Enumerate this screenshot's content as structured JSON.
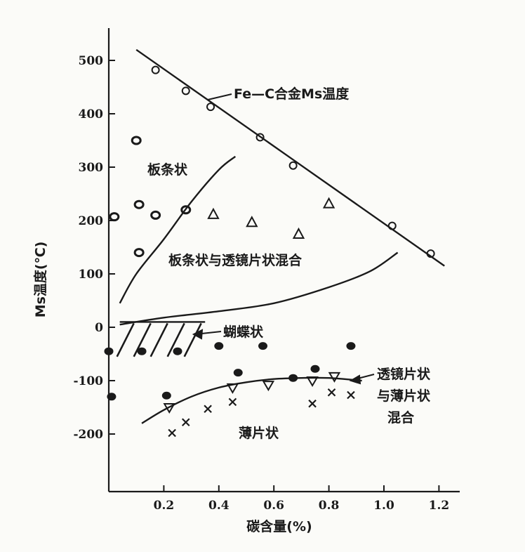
{
  "chart_data": {
    "type": "scatter",
    "xlabel": "碳含量(%)",
    "ylabel": "Ms温度(℃)",
    "xlim": [
      0,
      1.25
    ],
    "ylim": [
      -310,
      550
    ],
    "x_ticks": [
      "0.2",
      "0.4",
      "0.6",
      "0.8",
      "1.0",
      "1.2"
    ],
    "x_tick_values": [
      0.2,
      0.4,
      0.6,
      0.8,
      1.0,
      1.2
    ],
    "y_ticks": [
      "500",
      "400",
      "300",
      "200",
      "100",
      "0",
      "-100",
      "-200"
    ],
    "y_tick_values": [
      500,
      400,
      300,
      200,
      100,
      0,
      -100,
      -200
    ],
    "grid": false,
    "curves": {
      "ms_line": [
        [
          0.1,
          520
        ],
        [
          1.22,
          115
        ]
      ],
      "lath_boundary": [
        [
          0.04,
          45
        ],
        [
          0.1,
          100
        ],
        [
          0.2,
          165
        ],
        [
          0.3,
          235
        ],
        [
          0.4,
          295
        ],
        [
          0.46,
          320
        ]
      ],
      "mixed_boundary": [
        [
          0.04,
          5
        ],
        [
          0.2,
          18
        ],
        [
          0.4,
          30
        ],
        [
          0.6,
          45
        ],
        [
          0.8,
          75
        ],
        [
          0.95,
          105
        ],
        [
          1.05,
          140
        ]
      ],
      "plate_boundary": [
        [
          0.12,
          -180
        ],
        [
          0.2,
          -155
        ],
        [
          0.3,
          -130
        ],
        [
          0.4,
          -113
        ],
        [
          0.5,
          -103
        ],
        [
          0.6,
          -97
        ],
        [
          0.7,
          -95
        ],
        [
          0.8,
          -95
        ],
        [
          0.92,
          -100
        ]
      ]
    },
    "butterfly_region": {
      "x": [
        0.04,
        0.35
      ],
      "y": [
        -55,
        10
      ]
    },
    "series": [
      {
        "marker": "open-circle",
        "points": [
          [
            0.17,
            482
          ],
          [
            0.28,
            443
          ],
          [
            0.37,
            413
          ],
          [
            0.55,
            356
          ],
          [
            0.67,
            303
          ],
          [
            1.03,
            190
          ],
          [
            1.17,
            138
          ]
        ]
      },
      {
        "marker": "open-circle-thick",
        "points": [
          [
            0.1,
            350
          ],
          [
            0.02,
            207
          ],
          [
            0.11,
            230
          ],
          [
            0.17,
            210
          ],
          [
            0.28,
            220
          ],
          [
            0.11,
            140
          ]
        ]
      },
      {
        "marker": "open-triangle",
        "points": [
          [
            0.38,
            212
          ],
          [
            0.52,
            197
          ],
          [
            0.69,
            175
          ],
          [
            0.8,
            232
          ]
        ]
      },
      {
        "marker": "filled-circle",
        "points": [
          [
            0.0,
            -45
          ],
          [
            0.12,
            -45
          ],
          [
            0.25,
            -45
          ],
          [
            0.4,
            -35
          ],
          [
            0.56,
            -35
          ],
          [
            0.88,
            -35
          ],
          [
            0.47,
            -85
          ],
          [
            0.67,
            -95
          ],
          [
            0.75,
            -78
          ],
          [
            0.01,
            -130
          ],
          [
            0.21,
            -128
          ]
        ]
      },
      {
        "marker": "open-triangle-down",
        "points": [
          [
            0.45,
            -113
          ],
          [
            0.58,
            -108
          ],
          [
            0.74,
            -100
          ],
          [
            0.82,
            -92
          ],
          [
            0.22,
            -150
          ]
        ]
      },
      {
        "marker": "cross",
        "points": [
          [
            0.23,
            -198
          ],
          [
            0.28,
            -178
          ],
          [
            0.36,
            -153
          ],
          [
            0.45,
            -140
          ],
          [
            0.74,
            -143
          ],
          [
            0.81,
            -122
          ],
          [
            0.88,
            -127
          ]
        ]
      }
    ],
    "annotations": {
      "ms_label": "Fe—C合金Ms温度",
      "lath": "板条状",
      "mixed": "板条状与透镜片状混合",
      "butterfly": "蝴蝶状",
      "lens_plate_mix": [
        "透镜片状",
        "与薄片状",
        "混合"
      ],
      "plate": "薄片状"
    }
  }
}
